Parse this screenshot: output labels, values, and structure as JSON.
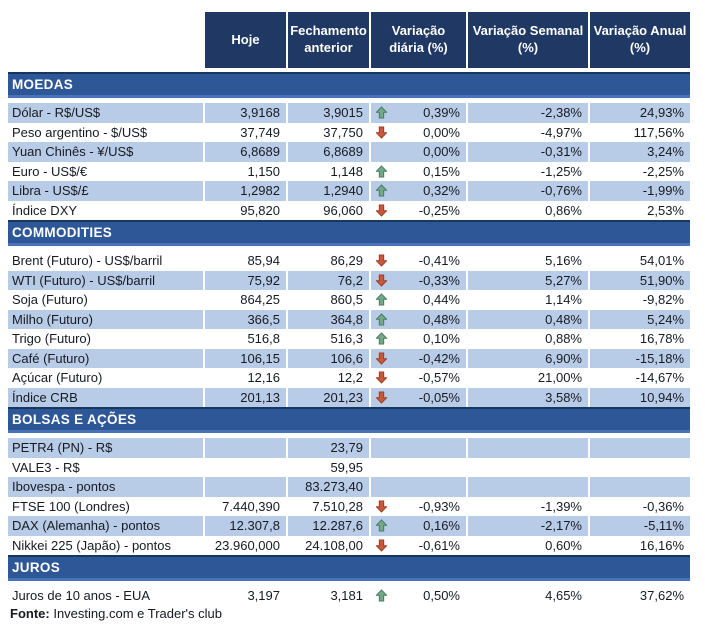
{
  "header": {
    "columns": [
      "Hoje",
      "Fechamento anterior",
      "Variação diária (%)",
      "Variação Semanal (%)",
      "Variação Anual (%)"
    ]
  },
  "sections": [
    {
      "title": "MOEDAS",
      "stripe_first": true,
      "rows": [
        {
          "label": "Dólar - R$/US$",
          "hoje": "3,9168",
          "fechamento": "3,9015",
          "arrow": "up",
          "diaria": "0,39%",
          "semanal": "-2,38%",
          "anual": "24,93%"
        },
        {
          "label": "Peso argentino - $/US$",
          "hoje": "37,749",
          "fechamento": "37,750",
          "arrow": "down",
          "diaria": "0,00%",
          "semanal": "-4,97%",
          "anual": "117,56%"
        },
        {
          "label": "Yuan Chinês - ¥/US$",
          "hoje": "6,8689",
          "fechamento": "6,8689",
          "arrow": "none",
          "diaria": "0,00%",
          "semanal": "-0,31%",
          "anual": "3,24%"
        },
        {
          "label": "Euro - US$/€",
          "hoje": "1,150",
          "fechamento": "1,148",
          "arrow": "up",
          "diaria": "0,15%",
          "semanal": "-1,25%",
          "anual": "-2,25%"
        },
        {
          "label": "Libra - US$/£",
          "hoje": "1,2982",
          "fechamento": "1,2940",
          "arrow": "up",
          "diaria": "0,32%",
          "semanal": "-0,76%",
          "anual": "-1,99%"
        },
        {
          "label": "Índice DXY",
          "hoje": "95,820",
          "fechamento": "96,060",
          "arrow": "down",
          "diaria": "-0,25%",
          "semanal": "0,86%",
          "anual": "2,53%"
        }
      ]
    },
    {
      "title": "COMMODITIES",
      "stripe_first": false,
      "rows": [
        {
          "label": "Brent (Futuro) - US$/barril",
          "hoje": "85,94",
          "fechamento": "86,29",
          "arrow": "down",
          "diaria": "-0,41%",
          "semanal": "5,16%",
          "anual": "54,01%"
        },
        {
          "label": "WTI (Futuro) - US$/barril",
          "hoje": "75,92",
          "fechamento": "76,2",
          "arrow": "down",
          "diaria": "-0,33%",
          "semanal": "5,27%",
          "anual": "51,90%"
        },
        {
          "label": "Soja (Futuro)",
          "hoje": "864,25",
          "fechamento": "860,5",
          "arrow": "up",
          "diaria": "0,44%",
          "semanal": "1,14%",
          "anual": "-9,82%"
        },
        {
          "label": "Milho (Futuro)",
          "hoje": "366,5",
          "fechamento": "364,8",
          "arrow": "up",
          "diaria": "0,48%",
          "semanal": "0,48%",
          "anual": "5,24%"
        },
        {
          "label": "Trigo (Futuro)",
          "hoje": "516,8",
          "fechamento": "516,3",
          "arrow": "up",
          "diaria": "0,10%",
          "semanal": "0,88%",
          "anual": "16,78%"
        },
        {
          "label": "Café (Futuro)",
          "hoje": "106,15",
          "fechamento": "106,6",
          "arrow": "down",
          "diaria": "-0,42%",
          "semanal": "6,90%",
          "anual": "-15,18%"
        },
        {
          "label": "Açúcar (Futuro)",
          "hoje": "12,16",
          "fechamento": "12,2",
          "arrow": "down",
          "diaria": "-0,57%",
          "semanal": "21,00%",
          "anual": "-14,67%"
        },
        {
          "label": "Índice CRB",
          "hoje": "201,13",
          "fechamento": "201,23",
          "arrow": "down",
          "diaria": "-0,05%",
          "semanal": "3,58%",
          "anual": "10,94%"
        }
      ]
    },
    {
      "title": "BOLSAS E AÇÕES",
      "stripe_first": true,
      "rows": [
        {
          "label": "PETR4 (PN) - R$",
          "hoje": "",
          "fechamento": "23,79",
          "arrow": "none",
          "diaria": "",
          "semanal": "",
          "anual": ""
        },
        {
          "label": "VALE3 - R$",
          "hoje": "",
          "fechamento": "59,95",
          "arrow": "none",
          "diaria": "",
          "semanal": "",
          "anual": ""
        },
        {
          "label": "Ibovespa - pontos",
          "hoje": "",
          "fechamento": "83.273,40",
          "arrow": "none",
          "diaria": "",
          "semanal": "",
          "anual": ""
        },
        {
          "label": "FTSE 100 (Londres)",
          "hoje": "7.440,390",
          "fechamento": "7.510,28",
          "arrow": "down",
          "diaria": "-0,93%",
          "semanal": "-1,39%",
          "anual": "-0,36%"
        },
        {
          "label": "DAX (Alemanha) - pontos",
          "hoje": "12.307,8",
          "fechamento": "12.287,6",
          "arrow": "up",
          "diaria": "0,16%",
          "semanal": "-2,17%",
          "anual": "-5,11%"
        },
        {
          "label": "Nikkei 225 (Japão) - pontos",
          "hoje": "23.960,000",
          "fechamento": "24.108,00",
          "arrow": "down",
          "diaria": "-0,61%",
          "semanal": "0,60%",
          "anual": "16,16%"
        }
      ]
    },
    {
      "title": "JUROS",
      "stripe_first": false,
      "rows": [
        {
          "label": "Juros de 10 anos - EUA",
          "hoje": "3,197",
          "fechamento": "3,181",
          "arrow": "up",
          "diaria": "0,50%",
          "semanal": "4,65%",
          "anual": "37,62%"
        }
      ]
    }
  ],
  "footer": {
    "label": "Fonte:",
    "text": " Investing.com e Trader's club"
  },
  "colors": {
    "header_bg": "#1F3864",
    "section_bg": "#2E5797",
    "section_border_top": "#17375E",
    "section_border_bottom": "#4A72B8",
    "row_stripe": "#B9CCE7",
    "arrow_up_fill": "#76A78C",
    "arrow_up_stroke": "#3E7A5A",
    "arrow_down_fill": "#C6593D",
    "arrow_down_stroke": "#9C3A22"
  },
  "icons": {
    "up": "arrow-up-icon",
    "down": "arrow-down-icon"
  }
}
